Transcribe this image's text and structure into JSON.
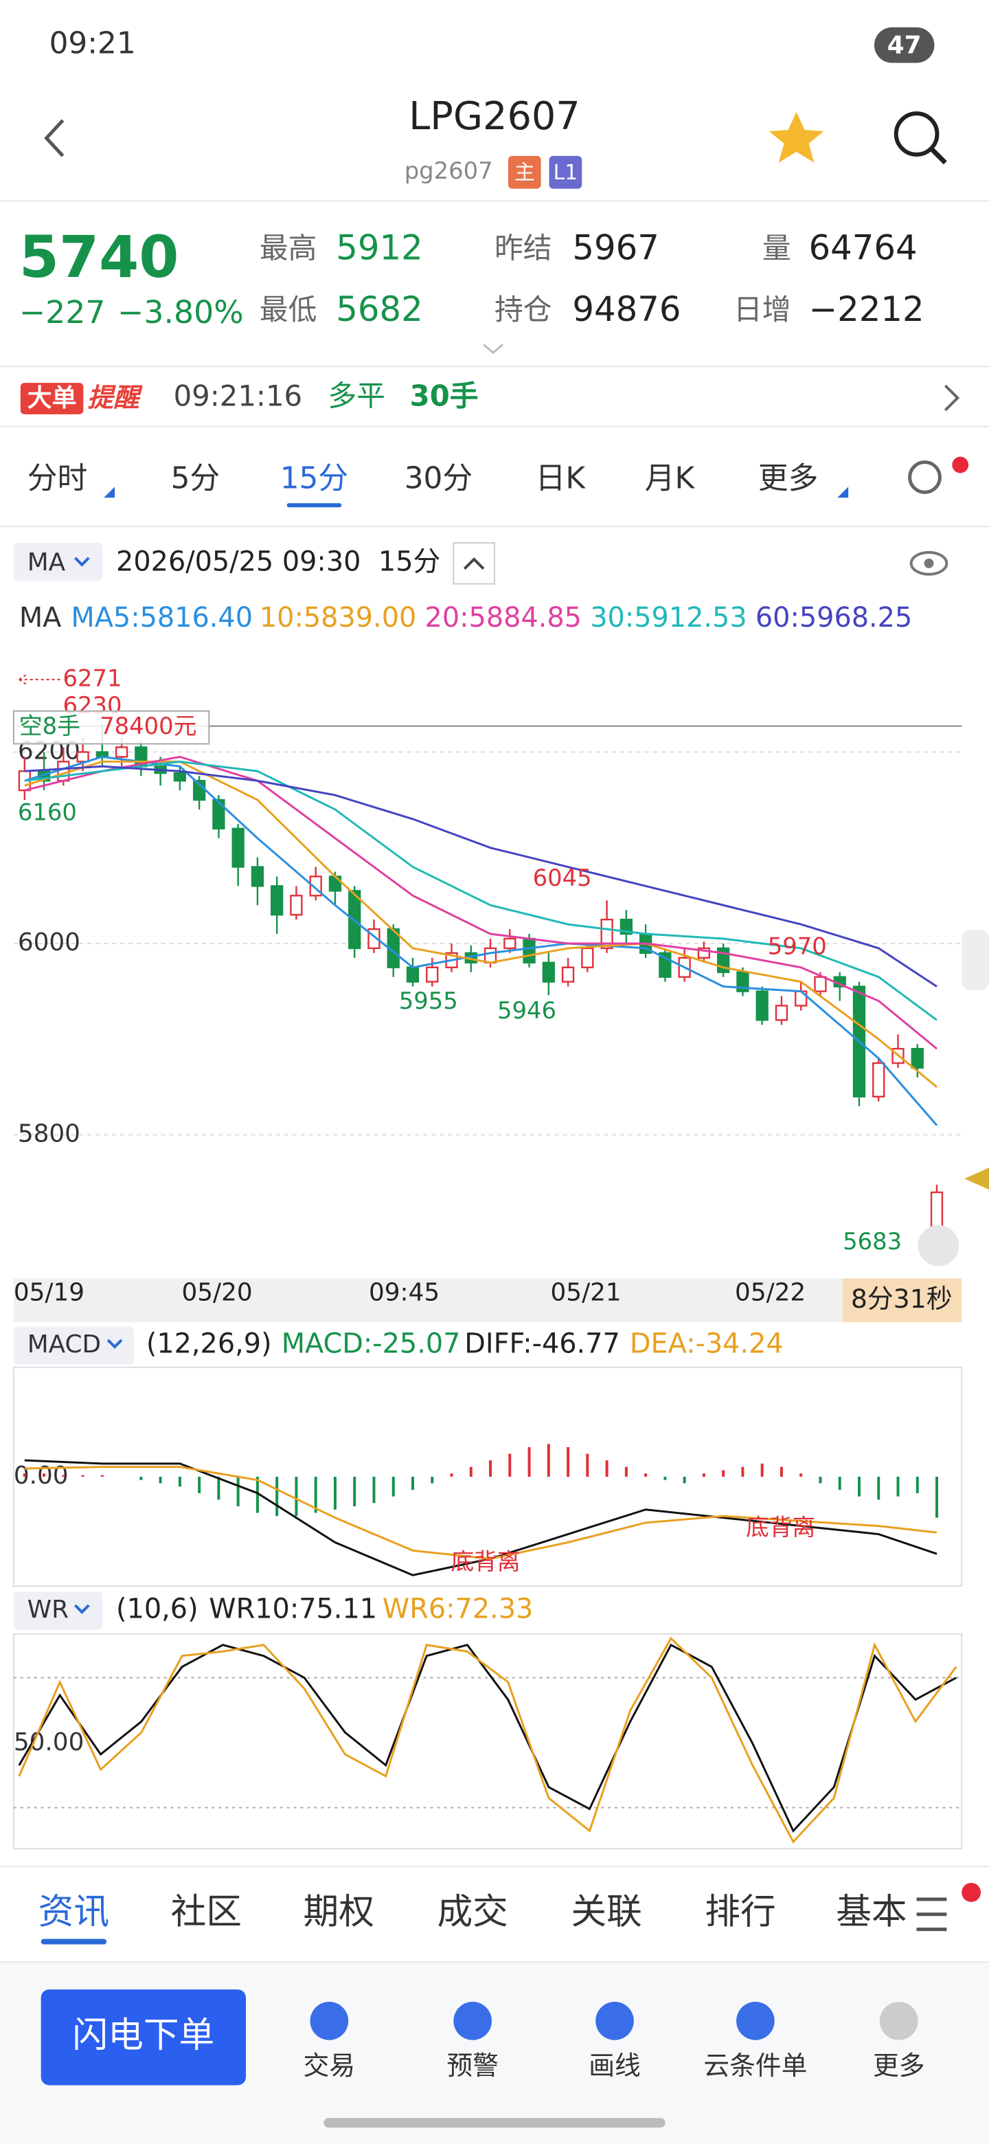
{
  "status": {
    "time": "09:21",
    "battery": "47"
  },
  "header": {
    "title": "LPG2607",
    "subtitle": "pg2607",
    "badges": [
      "主",
      "L1"
    ]
  },
  "quote": {
    "price": "5740",
    "change": "−227",
    "percent": "−3.80%",
    "stats": [
      {
        "label": "最高",
        "value": "5912"
      },
      {
        "label": "最低",
        "value": "5682"
      },
      {
        "label": "昨结",
        "value": "5967"
      },
      {
        "label": "持仓",
        "value": "94876"
      },
      {
        "label": "量",
        "value": "64764"
      },
      {
        "label": "日增",
        "value": "−2212"
      }
    ]
  },
  "alert": {
    "logo_a": "大单",
    "logo_b": "提醒",
    "time": "09:21:16",
    "action": "多平",
    "lots": "30手"
  },
  "tabs": [
    "分时",
    "5分",
    "15分",
    "30分",
    "日K",
    "月K",
    "更多"
  ],
  "chart_header": {
    "indicator": "MA",
    "datetime": "2026/05/25 09:30",
    "period": "15分"
  },
  "ma_legend": {
    "label": "MA",
    "items": [
      {
        "text": "MA5:5816.40",
        "color": "#2a8fe0"
      },
      {
        "text": "10:5839.00",
        "color": "#e8a020"
      },
      {
        "text": "20:5884.85",
        "color": "#e040a0"
      },
      {
        "text": "30:5912.53",
        "color": "#20b8b8"
      },
      {
        "text": "60:5968.25",
        "color": "#4444c0"
      }
    ]
  },
  "kline": {
    "ylim": [
      5650,
      6300
    ],
    "yticks": [
      6200,
      6000,
      5800
    ],
    "candles": [
      [
        6160,
        6180,
        6195,
        6150
      ],
      [
        6180,
        6170,
        6200,
        6160
      ],
      [
        6170,
        6190,
        6205,
        6165
      ],
      [
        6190,
        6200,
        6215,
        6180
      ],
      [
        6200,
        6195,
        6230,
        6185
      ],
      [
        6195,
        6205,
        6215,
        6185
      ],
      [
        6205,
        6185,
        6212,
        6175
      ],
      [
        6185,
        6178,
        6195,
        6165
      ],
      [
        6178,
        6170,
        6185,
        6160
      ],
      [
        6170,
        6150,
        6175,
        6140
      ],
      [
        6150,
        6120,
        6155,
        6110
      ],
      [
        6120,
        6080,
        6125,
        6060
      ],
      [
        6080,
        6060,
        6090,
        6040
      ],
      [
        6060,
        6030,
        6070,
        6010
      ],
      [
        6030,
        6050,
        6060,
        6025
      ],
      [
        6050,
        6070,
        6080,
        6045
      ],
      [
        6070,
        6055,
        6075,
        6040
      ],
      [
        6055,
        5995,
        6060,
        5985
      ],
      [
        5995,
        6015,
        6025,
        5990
      ],
      [
        6015,
        5975,
        6020,
        5965
      ],
      [
        5975,
        5960,
        5985,
        5955
      ],
      [
        5960,
        5975,
        5985,
        5955
      ],
      [
        5975,
        5990,
        6000,
        5970
      ],
      [
        5990,
        5980,
        5998,
        5970
      ],
      [
        5980,
        5995,
        6005,
        5975
      ],
      [
        5995,
        6005,
        6015,
        5990
      ],
      [
        6005,
        5980,
        6010,
        5975
      ],
      [
        5980,
        5960,
        5990,
        5946
      ],
      [
        5960,
        5975,
        5985,
        5955
      ],
      [
        5975,
        5995,
        6000,
        5970
      ],
      [
        5995,
        6025,
        6045,
        5990
      ],
      [
        6025,
        6010,
        6035,
        6000
      ],
      [
        6010,
        5990,
        6020,
        5985
      ],
      [
        5990,
        5965,
        5995,
        5960
      ],
      [
        5965,
        5985,
        5995,
        5960
      ],
      [
        5985,
        5995,
        6002,
        5980
      ],
      [
        5995,
        5970,
        6000,
        5965
      ],
      [
        5970,
        5950,
        5975,
        5945
      ],
      [
        5950,
        5920,
        5955,
        5915
      ],
      [
        5920,
        5935,
        5945,
        5915
      ],
      [
        5935,
        5950,
        5960,
        5930
      ],
      [
        5950,
        5965,
        5970,
        5945
      ],
      [
        5965,
        5955,
        5970,
        5940
      ],
      [
        5955,
        5840,
        5960,
        5830
      ],
      [
        5840,
        5875,
        5880,
        5835
      ],
      [
        5875,
        5890,
        5905,
        5870
      ],
      [
        5890,
        5870,
        5895,
        5860
      ],
      [
        5695,
        5740,
        5748,
        5683
      ]
    ],
    "ma_x": [
      0,
      4,
      8,
      12,
      16,
      20,
      24,
      28,
      32,
      36,
      40,
      44,
      47
    ],
    "ma": [
      [
        6170,
        6195,
        6185,
        6110,
        6040,
        5975,
        5990,
        6000,
        5995,
        5955,
        5950,
        5880,
        5810
      ],
      [
        6165,
        6190,
        6190,
        6150,
        6070,
        5995,
        5980,
        5995,
        6000,
        5975,
        5960,
        5900,
        5850
      ],
      [
        6160,
        6180,
        6195,
        6170,
        6110,
        6050,
        6010,
        6000,
        6000,
        5990,
        5975,
        5940,
        5890
      ],
      [
        6170,
        6180,
        6190,
        6180,
        6140,
        6080,
        6040,
        6020,
        6010,
        6005,
        5995,
        5965,
        5920
      ],
      [
        6180,
        6185,
        6180,
        6170,
        6155,
        6130,
        6100,
        6080,
        6060,
        6040,
        6020,
        5995,
        5955
      ]
    ],
    "annotations": [
      "6271",
      "6230",
      "6160",
      "6045",
      "5955",
      "5946",
      "5970",
      "5683"
    ],
    "position": {
      "side": "空8手",
      "amount": "78400元"
    },
    "dates": [
      "05/19",
      "05/20",
      "09:45",
      "05/21",
      "05/22"
    ],
    "countdown": "8分31秒"
  },
  "macd": {
    "name": "MACD",
    "params": "(12,26,9)",
    "macd": "MACD:-25.07",
    "diff": "DIFF:-46.77",
    "dea": "DEA:-34.24",
    "zero": "0.00",
    "divergence": [
      "底背离",
      "底背离"
    ],
    "hist": [
      2,
      2,
      1,
      1,
      1,
      0,
      -2,
      -4,
      -6,
      -10,
      -14,
      -18,
      -22,
      -24,
      -24,
      -22,
      -20,
      -18,
      -16,
      -12,
      -8,
      -4,
      2,
      6,
      10,
      14,
      18,
      20,
      18,
      14,
      10,
      6,
      2,
      -2,
      -4,
      2,
      4,
      6,
      8,
      6,
      2,
      -4,
      -8,
      -12,
      -14,
      -12,
      -10,
      -25
    ],
    "diff_values": [
      10,
      8,
      8,
      -10,
      -40,
      -60,
      -50,
      -35,
      -20,
      -25,
      -30,
      -35,
      -47
    ],
    "dea_values": [
      5,
      6,
      6,
      -2,
      -25,
      -45,
      -50,
      -40,
      -28,
      -24,
      -27,
      -30,
      -34
    ]
  },
  "wr": {
    "name": "WR",
    "params": "(10,6)",
    "wr10": "WR10:75.11",
    "wr6": "WR6:72.33",
    "mid": "50.00",
    "wr10_values": [
      40,
      72,
      45,
      60,
      85,
      95,
      90,
      80,
      55,
      40,
      90,
      95,
      70,
      30,
      20,
      60,
      95,
      85,
      50,
      10,
      30,
      90,
      70,
      80
    ],
    "wr6_values": [
      35,
      78,
      38,
      55,
      90,
      92,
      95,
      75,
      45,
      35,
      95,
      92,
      78,
      25,
      10,
      65,
      98,
      80,
      40,
      5,
      25,
      95,
      60,
      85
    ]
  },
  "bottom_tabs": [
    "资讯",
    "社区",
    "期权",
    "成交",
    "关联",
    "排行",
    "基本"
  ],
  "actions": {
    "primary": "闪电下单",
    "items": [
      "交易",
      "预警",
      "画线",
      "云条件单",
      "更多"
    ]
  }
}
